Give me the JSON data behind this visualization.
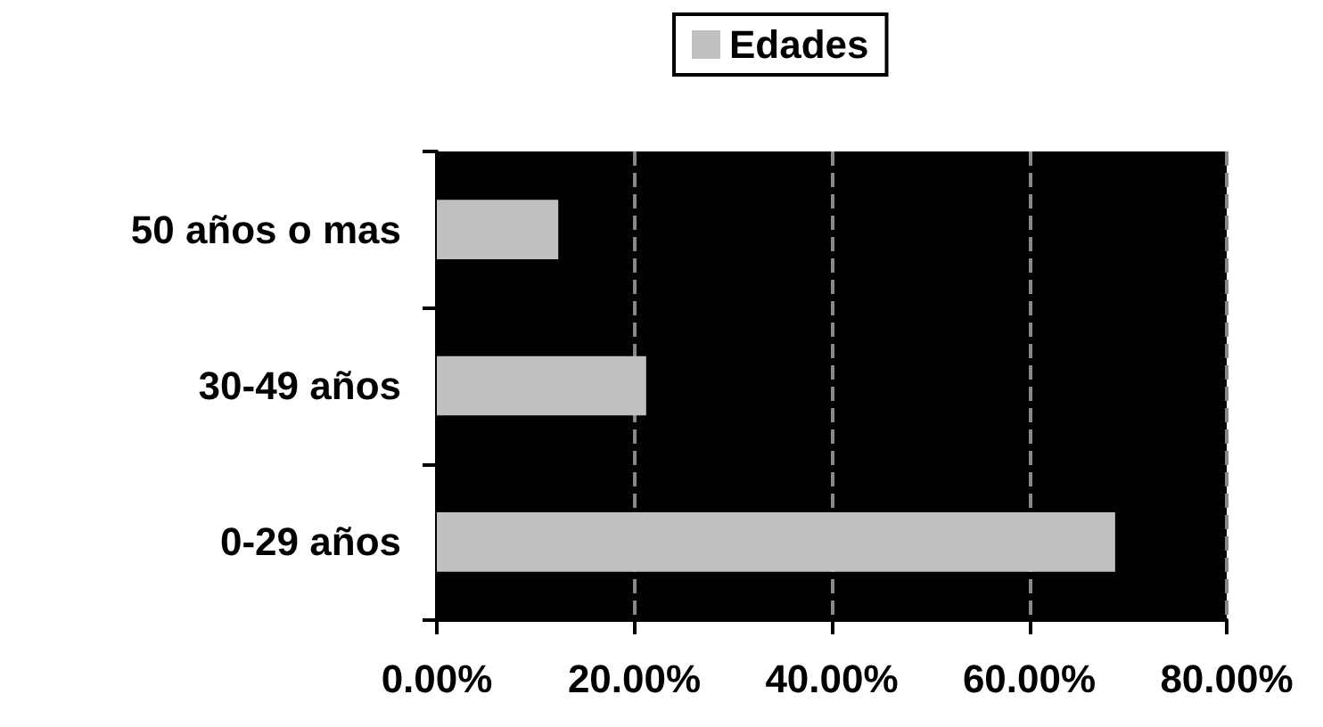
{
  "chart_data": {
    "type": "bar",
    "orientation": "horizontal",
    "categories": [
      "50 años o mas",
      "30-49 años",
      "0-29 años"
    ],
    "series": [
      {
        "name": "Edades",
        "color": "#c0c0c0",
        "values": [
          12.3,
          21.2,
          68.7
        ]
      }
    ],
    "xlim": [
      0,
      80
    ],
    "xticks": [
      {
        "value": 0,
        "label": "0.00%"
      },
      {
        "value": 20,
        "label": "20.00%"
      },
      {
        "value": 40,
        "label": "40.00%"
      },
      {
        "value": 60,
        "label": "60.00%"
      },
      {
        "value": 80,
        "label": "80.00%"
      }
    ],
    "grid": "x",
    "legend": "top"
  }
}
